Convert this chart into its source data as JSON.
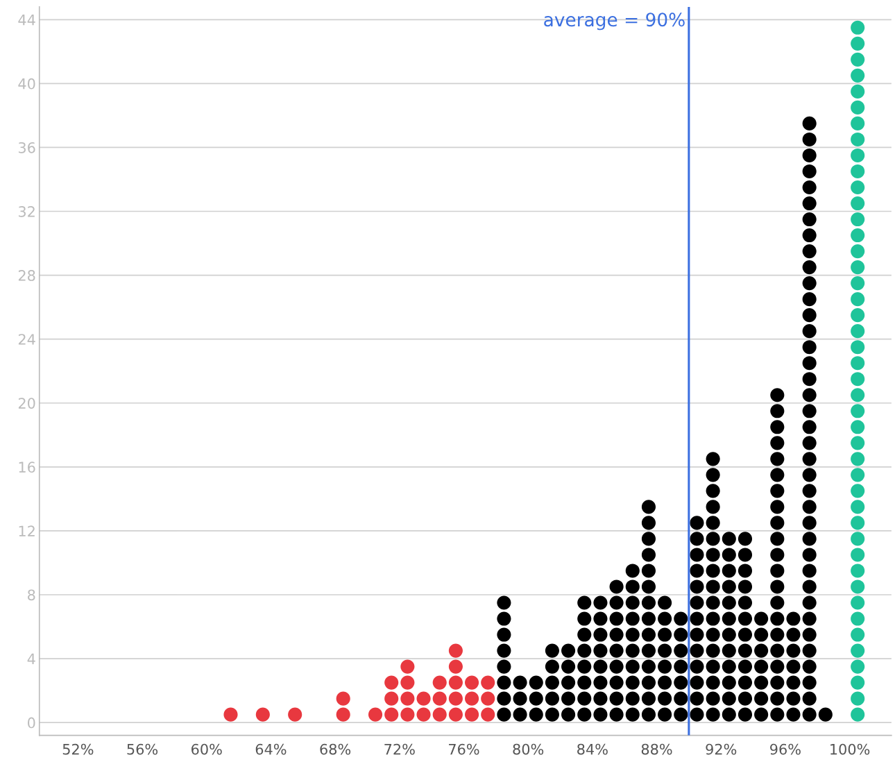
{
  "chart_data": {
    "type": "scatter",
    "marker": "circle",
    "series": [
      {
        "color": "#e8383f",
        "x": [
          61.5,
          63.5,
          65.5,
          68.5,
          68.5,
          70.5,
          71.5,
          71.5,
          71.5,
          72.5,
          72.5,
          72.5,
          72.5,
          73.5,
          73.5,
          74.5,
          74.5,
          74.5,
          75.5,
          75.5,
          75.5,
          75.5,
          75.5,
          76.5,
          76.5,
          76.5,
          77.5,
          77.5,
          77.5
        ],
        "values": [
          0.5,
          0.5,
          0.5,
          0.5,
          1.5,
          0.5,
          0.5,
          1.5,
          2.5,
          0.5,
          1.5,
          2.5,
          3.5,
          0.5,
          1.5,
          0.5,
          1.5,
          2.5,
          0.5,
          1.5,
          2.5,
          3.5,
          4.5,
          0.5,
          1.5,
          2.5,
          0.5,
          1.5,
          2.5
        ]
      },
      {
        "color": "#000000",
        "x": [
          78.5,
          78.5,
          78.5,
          78.5,
          78.5,
          78.5,
          78.5,
          78.5,
          79.5,
          79.5,
          79.5,
          80.5,
          80.5,
          80.5,
          81.5,
          81.5,
          81.5,
          81.5,
          81.5,
          82.5,
          82.5,
          82.5,
          82.5,
          82.5,
          83.5,
          83.5,
          83.5,
          83.5,
          83.5,
          83.5,
          83.5,
          83.5,
          84.5,
          84.5,
          84.5,
          84.5,
          84.5,
          84.5,
          84.5,
          84.5,
          85.5,
          85.5,
          85.5,
          85.5,
          85.5,
          85.5,
          85.5,
          85.5,
          85.5,
          86.5,
          86.5,
          86.5,
          86.5,
          86.5,
          86.5,
          86.5,
          86.5,
          86.5,
          86.5,
          87.5,
          87.5,
          87.5,
          87.5,
          87.5,
          87.5,
          87.5,
          87.5,
          87.5,
          87.5,
          87.5,
          87.5,
          87.5,
          87.5,
          88.5,
          88.5,
          88.5,
          88.5,
          88.5,
          88.5,
          88.5,
          88.5,
          89.5,
          89.5,
          89.5,
          89.5,
          89.5,
          89.5,
          89.5,
          90.5,
          90.5,
          90.5,
          90.5,
          90.5,
          90.5,
          90.5,
          90.5,
          90.5,
          90.5,
          90.5,
          90.5,
          90.5,
          91.5,
          91.5,
          91.5,
          91.5,
          91.5,
          91.5,
          91.5,
          91.5,
          91.5,
          91.5,
          91.5,
          91.5,
          91.5,
          91.5,
          91.5,
          91.5,
          91.5,
          92.5,
          92.5,
          92.5,
          92.5,
          92.5,
          92.5,
          92.5,
          92.5,
          92.5,
          92.5,
          92.5,
          92.5,
          93.5,
          93.5,
          93.5,
          93.5,
          93.5,
          93.5,
          93.5,
          93.5,
          93.5,
          93.5,
          93.5,
          93.5,
          94.5,
          94.5,
          94.5,
          94.5,
          94.5,
          94.5,
          94.5,
          95.5,
          95.5,
          95.5,
          95.5,
          95.5,
          95.5,
          95.5,
          95.5,
          95.5,
          95.5,
          95.5,
          95.5,
          95.5,
          95.5,
          95.5,
          95.5,
          95.5,
          95.5,
          95.5,
          95.5,
          95.5,
          96.5,
          96.5,
          96.5,
          96.5,
          96.5,
          96.5,
          96.5,
          97.5,
          97.5,
          97.5,
          97.5,
          97.5,
          97.5,
          97.5,
          97.5,
          97.5,
          97.5,
          97.5,
          97.5,
          97.5,
          97.5,
          97.5,
          97.5,
          97.5,
          97.5,
          97.5,
          97.5,
          97.5,
          97.5,
          97.5,
          97.5,
          97.5,
          97.5,
          97.5,
          97.5,
          97.5,
          97.5,
          97.5,
          97.5,
          97.5,
          97.5,
          97.5,
          97.5,
          97.5,
          97.5,
          98.5
        ],
        "values": [
          0.5,
          1.5,
          2.5,
          3.5,
          4.5,
          5.5,
          6.5,
          7.5,
          0.5,
          1.5,
          2.5,
          0.5,
          1.5,
          2.5,
          0.5,
          1.5,
          2.5,
          3.5,
          4.5,
          0.5,
          1.5,
          2.5,
          3.5,
          4.5,
          0.5,
          1.5,
          2.5,
          3.5,
          4.5,
          5.5,
          6.5,
          7.5,
          0.5,
          1.5,
          2.5,
          3.5,
          4.5,
          5.5,
          6.5,
          7.5,
          0.5,
          1.5,
          2.5,
          3.5,
          4.5,
          5.5,
          6.5,
          7.5,
          8.5,
          0.5,
          1.5,
          2.5,
          3.5,
          4.5,
          5.5,
          6.5,
          7.5,
          8.5,
          9.5,
          0.5,
          1.5,
          2.5,
          3.5,
          4.5,
          5.5,
          6.5,
          7.5,
          8.5,
          9.5,
          10.5,
          11.5,
          12.5,
          13.5,
          0.5,
          1.5,
          2.5,
          3.5,
          4.5,
          5.5,
          6.5,
          7.5,
          0.5,
          1.5,
          2.5,
          3.5,
          4.5,
          5.5,
          6.5,
          0.5,
          1.5,
          2.5,
          3.5,
          4.5,
          5.5,
          6.5,
          7.5,
          8.5,
          9.5,
          10.5,
          11.5,
          12.5,
          0.5,
          1.5,
          2.5,
          3.5,
          4.5,
          5.5,
          6.5,
          7.5,
          8.5,
          9.5,
          10.5,
          11.5,
          12.5,
          13.5,
          14.5,
          15.5,
          16.5,
          0.5,
          1.5,
          2.5,
          3.5,
          4.5,
          5.5,
          6.5,
          7.5,
          8.5,
          9.5,
          10.5,
          11.5,
          0.5,
          1.5,
          2.5,
          3.5,
          4.5,
          5.5,
          6.5,
          7.5,
          8.5,
          9.5,
          10.5,
          11.5,
          0.5,
          1.5,
          2.5,
          3.5,
          4.5,
          5.5,
          6.5,
          0.5,
          1.5,
          2.5,
          3.5,
          4.5,
          5.5,
          6.5,
          7.5,
          8.5,
          9.5,
          10.5,
          11.5,
          12.5,
          13.5,
          14.5,
          15.5,
          16.5,
          17.5,
          18.5,
          19.5,
          20.5,
          0.5,
          1.5,
          2.5,
          3.5,
          4.5,
          5.5,
          6.5,
          0.5,
          1.5,
          2.5,
          3.5,
          4.5,
          5.5,
          6.5,
          7.5,
          8.5,
          9.5,
          10.5,
          11.5,
          12.5,
          13.5,
          14.5,
          15.5,
          16.5,
          17.5,
          18.5,
          19.5,
          20.5,
          21.5,
          22.5,
          23.5,
          24.5,
          25.5,
          26.5,
          27.5,
          28.5,
          29.5,
          30.5,
          31.5,
          32.5,
          33.5,
          34.5,
          35.5,
          36.5,
          37.5,
          0.5
        ]
      },
      {
        "color": "#1fc49a",
        "x": [
          100.5,
          100.5,
          100.5,
          100.5,
          100.5,
          100.5,
          100.5,
          100.5,
          100.5,
          100.5,
          100.5,
          100.5,
          100.5,
          100.5,
          100.5,
          100.5,
          100.5,
          100.5,
          100.5,
          100.5,
          100.5,
          100.5,
          100.5,
          100.5,
          100.5,
          100.5,
          100.5,
          100.5,
          100.5,
          100.5,
          100.5,
          100.5,
          100.5,
          100.5,
          100.5,
          100.5,
          100.5,
          100.5,
          100.5,
          100.5,
          100.5,
          100.5,
          100.5,
          100.5
        ],
        "values": [
          0.5,
          1.5,
          2.5,
          3.5,
          4.5,
          5.5,
          6.5,
          7.5,
          8.5,
          9.5,
          10.5,
          11.5,
          12.5,
          13.5,
          14.5,
          15.5,
          16.5,
          17.5,
          18.5,
          19.5,
          20.5,
          21.5,
          22.5,
          23.5,
          24.5,
          25.5,
          26.5,
          27.5,
          28.5,
          29.5,
          30.5,
          31.5,
          32.5,
          33.5,
          34.5,
          35.5,
          36.5,
          37.5,
          38.5,
          39.5,
          40.5,
          41.5,
          42.5,
          43.5
        ]
      }
    ],
    "xlim": [
      49.6,
      102.6
    ],
    "xticks": [
      {
        "value": 52,
        "label": "52%"
      },
      {
        "value": 56,
        "label": "56%"
      },
      {
        "value": 60,
        "label": "60%"
      },
      {
        "value": 64,
        "label": "64%"
      },
      {
        "value": 68,
        "label": "68%"
      },
      {
        "value": 72,
        "label": "72%"
      },
      {
        "value": 76,
        "label": "76%"
      },
      {
        "value": 80,
        "label": "80%"
      },
      {
        "value": 84,
        "label": "84%"
      },
      {
        "value": 88,
        "label": "88%"
      },
      {
        "value": 92,
        "label": "92%"
      },
      {
        "value": 96,
        "label": "96%"
      },
      {
        "value": 100,
        "label": "100%"
      }
    ],
    "ylim": [
      -0.8,
      44.8
    ],
    "yticks": [
      0,
      4,
      8,
      12,
      16,
      20,
      24,
      28,
      32,
      36,
      40,
      44
    ],
    "grid": "y",
    "ref_lines": [
      {
        "axis": "x",
        "value": 90,
        "label": "average = 90%",
        "color": "#3b6fe0"
      }
    ]
  }
}
